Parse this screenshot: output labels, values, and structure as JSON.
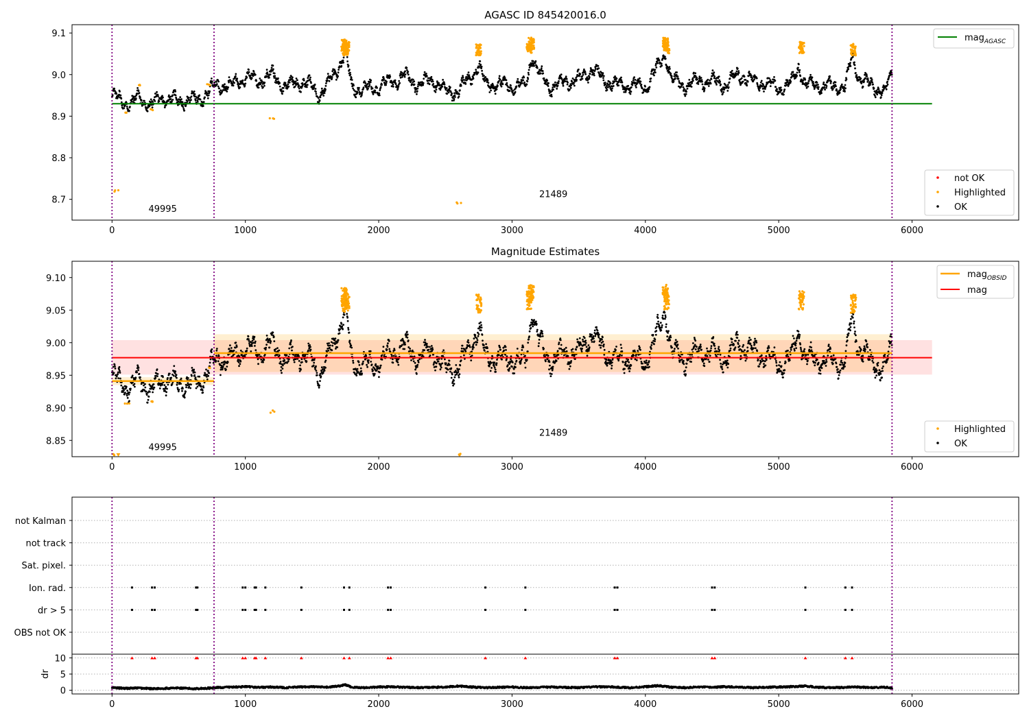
{
  "chart_data": [
    {
      "type": "scatter",
      "title": "AGASC ID 845420016.0",
      "xlim": [
        -300,
        6800
      ],
      "ylim": [
        8.65,
        9.12
      ],
      "xticks": [
        0,
        1000,
        2000,
        3000,
        4000,
        5000,
        6000
      ],
      "yticks": [
        8.7,
        8.8,
        8.9,
        9.0,
        9.1
      ],
      "ytick_labels": [
        "8.7",
        "8.8",
        "8.9",
        "9.0",
        "9.1"
      ],
      "obs_boundaries": [
        0,
        765,
        5850
      ],
      "obs_labels": [
        {
          "text": "49995",
          "x": 380,
          "y": 8.67
        },
        {
          "text": "21489",
          "x": 3310,
          "y": 8.705
        }
      ],
      "mag_agasc": {
        "label": "mag",
        "sub": "AGASC",
        "value": 8.93,
        "x": [
          0,
          6150
        ],
        "color": "#008000"
      },
      "series_ok": {
        "name": "OK",
        "color": "#000000",
        "x": [
          0,
          50,
          100,
          150,
          200,
          250,
          300,
          350,
          400,
          450,
          500,
          550,
          600,
          650,
          700,
          765,
          800,
          900,
          1000,
          1100,
          1200,
          1300,
          1400,
          1500,
          1550,
          1600,
          1700,
          1750,
          1800,
          1900,
          2000,
          2100,
          2200,
          2300,
          2400,
          2500,
          2600,
          2700,
          2750,
          2800,
          2900,
          3000,
          3100,
          3150,
          3200,
          3300,
          3400,
          3500,
          3600,
          3700,
          3800,
          3900,
          4000,
          4100,
          4150,
          4200,
          4300,
          4400,
          4500,
          4600,
          4700,
          4800,
          4900,
          5000,
          5100,
          5150,
          5200,
          5300,
          5400,
          5500,
          5550,
          5600,
          5700,
          5800,
          5850
        ],
        "y": [
          8.95,
          8.94,
          8.935,
          8.93,
          8.945,
          8.935,
          8.925,
          8.94,
          8.945,
          8.94,
          8.935,
          8.94,
          8.94,
          8.935,
          8.955,
          8.97,
          8.975,
          8.975,
          8.995,
          8.985,
          9.0,
          8.97,
          8.985,
          8.97,
          8.955,
          8.965,
          9.02,
          9.05,
          8.97,
          8.965,
          8.97,
          8.985,
          8.995,
          8.975,
          8.99,
          8.96,
          8.96,
          9.0,
          9.02,
          8.98,
          8.975,
          8.975,
          8.97,
          9.05,
          9.0,
          8.97,
          8.985,
          8.985,
          9.015,
          8.985,
          8.975,
          8.975,
          8.97,
          9.02,
          9.05,
          8.985,
          8.975,
          8.985,
          8.985,
          8.975,
          9.0,
          8.985,
          8.98,
          8.965,
          8.98,
          9.02,
          8.975,
          8.975,
          8.97,
          8.97,
          9.04,
          8.995,
          8.97,
          8.96,
          9.0
        ]
      },
      "series_highlighted": {
        "name": "Highlighted",
        "color": "#ffa500",
        "x": [
          30,
          110,
          215,
          300,
          720,
          1200,
          1740,
          1750,
          1760,
          2600,
          2750,
          3130,
          3145,
          4150,
          4160,
          5170,
          5560
        ],
        "y": [
          8.72,
          8.91,
          8.975,
          8.915,
          8.975,
          8.893,
          9.07,
          9.06,
          9.065,
          8.692,
          9.06,
          9.065,
          9.075,
          9.075,
          9.065,
          9.065,
          9.06
        ]
      },
      "series_not_ok": {
        "name": "not OK",
        "color": "#ff0000",
        "x": [],
        "y": []
      },
      "legend_upper": {
        "entries": [
          {
            "label": "mag",
            "sub": "AGASC"
          }
        ]
      },
      "legend_lower": {
        "entries": [
          "not OK",
          "Highlighted",
          "OK"
        ]
      }
    },
    {
      "type": "scatter",
      "title": "Magnitude Estimates",
      "xlim": [
        -300,
        6800
      ],
      "ylim": [
        8.825,
        9.125
      ],
      "xticks": [
        0,
        1000,
        2000,
        3000,
        4000,
        5000,
        6000
      ],
      "yticks": [
        8.85,
        8.9,
        8.95,
        9.0,
        9.05,
        9.1
      ],
      "ytick_labels": [
        "8.85",
        "8.90",
        "8.95",
        "9.00",
        "9.05",
        "9.10"
      ],
      "obs_boundaries": [
        0,
        765,
        5850
      ],
      "obs_labels": [
        {
          "text": "49995",
          "x": 380,
          "y": 8.835
        },
        {
          "text": "21489",
          "x": 3310,
          "y": 8.857
        }
      ],
      "mag": {
        "label": "mag",
        "value": 8.977,
        "band": [
          8.951,
          9.004
        ],
        "x": [
          0,
          6150
        ],
        "color": "#ff0000",
        "band_color": "#ffdede"
      },
      "mag_obsid": [
        {
          "label": "mag",
          "sub": "OBSID",
          "x": [
            0,
            765
          ],
          "value": 8.941,
          "band": [
            8.935,
            8.947
          ],
          "color": "#ffa500"
        },
        {
          "label": "mag",
          "sub": "OBSID",
          "x": [
            765,
            5850
          ],
          "value": 8.984,
          "band": [
            8.955,
            9.013
          ],
          "color": "#ffa500"
        }
      ],
      "series_ok": {
        "name": "OK",
        "color": "#000000",
        "x": [
          0,
          50,
          100,
          150,
          200,
          250,
          300,
          350,
          400,
          450,
          500,
          550,
          600,
          650,
          700,
          765,
          800,
          900,
          1000,
          1100,
          1200,
          1300,
          1400,
          1500,
          1550,
          1600,
          1700,
          1750,
          1800,
          1900,
          2000,
          2100,
          2200,
          2300,
          2400,
          2500,
          2600,
          2700,
          2750,
          2800,
          2900,
          3000,
          3100,
          3150,
          3200,
          3300,
          3400,
          3500,
          3600,
          3700,
          3800,
          3900,
          4000,
          4100,
          4150,
          4200,
          4300,
          4400,
          4500,
          4600,
          4700,
          4800,
          4900,
          5000,
          5100,
          5150,
          5200,
          5300,
          5400,
          5500,
          5550,
          5600,
          5700,
          5800,
          5850
        ],
        "y": [
          8.95,
          8.94,
          8.935,
          8.93,
          8.945,
          8.935,
          8.925,
          8.94,
          8.945,
          8.94,
          8.935,
          8.94,
          8.94,
          8.935,
          8.955,
          8.97,
          8.975,
          8.975,
          8.995,
          8.985,
          9.0,
          8.97,
          8.985,
          8.97,
          8.955,
          8.965,
          9.02,
          9.05,
          8.97,
          8.965,
          8.97,
          8.985,
          8.995,
          8.975,
          8.99,
          8.96,
          8.96,
          9.0,
          9.02,
          8.98,
          8.975,
          8.975,
          8.97,
          9.05,
          9.0,
          8.97,
          8.985,
          8.985,
          9.015,
          8.985,
          8.975,
          8.975,
          8.97,
          9.02,
          9.05,
          8.985,
          8.975,
          8.985,
          8.985,
          8.975,
          9.0,
          8.985,
          8.98,
          8.965,
          8.98,
          9.02,
          8.975,
          8.975,
          8.97,
          8.97,
          9.04,
          8.995,
          8.97,
          8.96,
          9.0
        ]
      },
      "series_highlighted": {
        "name": "Highlighted",
        "color": "#ffa500",
        "x": [
          30,
          110,
          300,
          720,
          1200,
          1740,
          1750,
          1760,
          2600,
          2750,
          3130,
          3145,
          4150,
          4160,
          5170,
          5560
        ],
        "y": [
          8.828,
          8.907,
          8.91,
          8.96,
          8.894,
          9.07,
          9.06,
          9.065,
          8.828,
          9.06,
          9.065,
          9.075,
          9.075,
          9.065,
          9.065,
          9.06
        ]
      },
      "legend_upper": {
        "entries": [
          {
            "label": "mag",
            "sub": "OBSID"
          },
          {
            "label": "mag",
            "sub": ""
          }
        ]
      },
      "legend_lower": {
        "entries": [
          "Highlighted",
          "OK"
        ]
      }
    },
    {
      "type": "scatter",
      "title": "",
      "xlim": [
        -300,
        6800
      ],
      "xticks": [
        0,
        1000,
        2000,
        3000,
        4000,
        5000,
        6000
      ],
      "obs_boundaries": [
        0,
        765,
        5850
      ],
      "flag_rows": [
        "not Kalman",
        "not track",
        "Sat. pixel.",
        "Ion. rad.",
        "dr > 5",
        "OBS not OK"
      ],
      "flag_events_x": [
        150,
        300,
        320,
        630,
        640,
        980,
        1000,
        1070,
        1080,
        1150,
        1420,
        1740,
        1780,
        2070,
        2090,
        2800,
        3100,
        3770,
        3790,
        4500,
        4520,
        5200,
        5500,
        5550
      ],
      "flag_event_rows": [
        "Ion. rad.",
        "dr > 5"
      ],
      "dr_panel": {
        "ylabel": "dr",
        "ylim": [
          -0.5,
          10.5
        ],
        "yticks": [
          0,
          5,
          10
        ],
        "threshold_markers_y": 10,
        "x": [
          0,
          100,
          200,
          300,
          400,
          500,
          600,
          700,
          765,
          900,
          1000,
          1100,
          1200,
          1300,
          1400,
          1500,
          1600,
          1700,
          1750,
          1800,
          1900,
          2000,
          2100,
          2200,
          2300,
          2400,
          2500,
          2600,
          2700,
          2800,
          2900,
          3000,
          3100,
          3200,
          3300,
          3400,
          3500,
          3600,
          3700,
          3800,
          3900,
          4000,
          4100,
          4200,
          4300,
          4400,
          4500,
          4600,
          4700,
          4800,
          4900,
          5000,
          5100,
          5200,
          5300,
          5400,
          5500,
          5600,
          5700,
          5800,
          5850
        ],
        "y": [
          0.8,
          0.6,
          0.7,
          0.5,
          0.6,
          0.7,
          0.5,
          0.6,
          0.8,
          1.0,
          1.1,
          0.9,
          1.0,
          0.8,
          1.0,
          1.1,
          0.9,
          1.3,
          1.7,
          0.9,
          0.8,
          1.0,
          1.1,
          0.9,
          0.8,
          0.9,
          1.0,
          1.3,
          1.0,
          0.8,
          0.9,
          1.0,
          0.8,
          0.9,
          1.0,
          0.9,
          0.8,
          1.0,
          1.1,
          0.9,
          0.8,
          1.1,
          1.4,
          0.9,
          0.8,
          1.0,
          0.9,
          1.1,
          1.0,
          0.8,
          0.9,
          1.0,
          1.1,
          1.3,
          0.9,
          0.8,
          0.9,
          1.0,
          0.8,
          0.9,
          0.7
        ]
      }
    }
  ]
}
